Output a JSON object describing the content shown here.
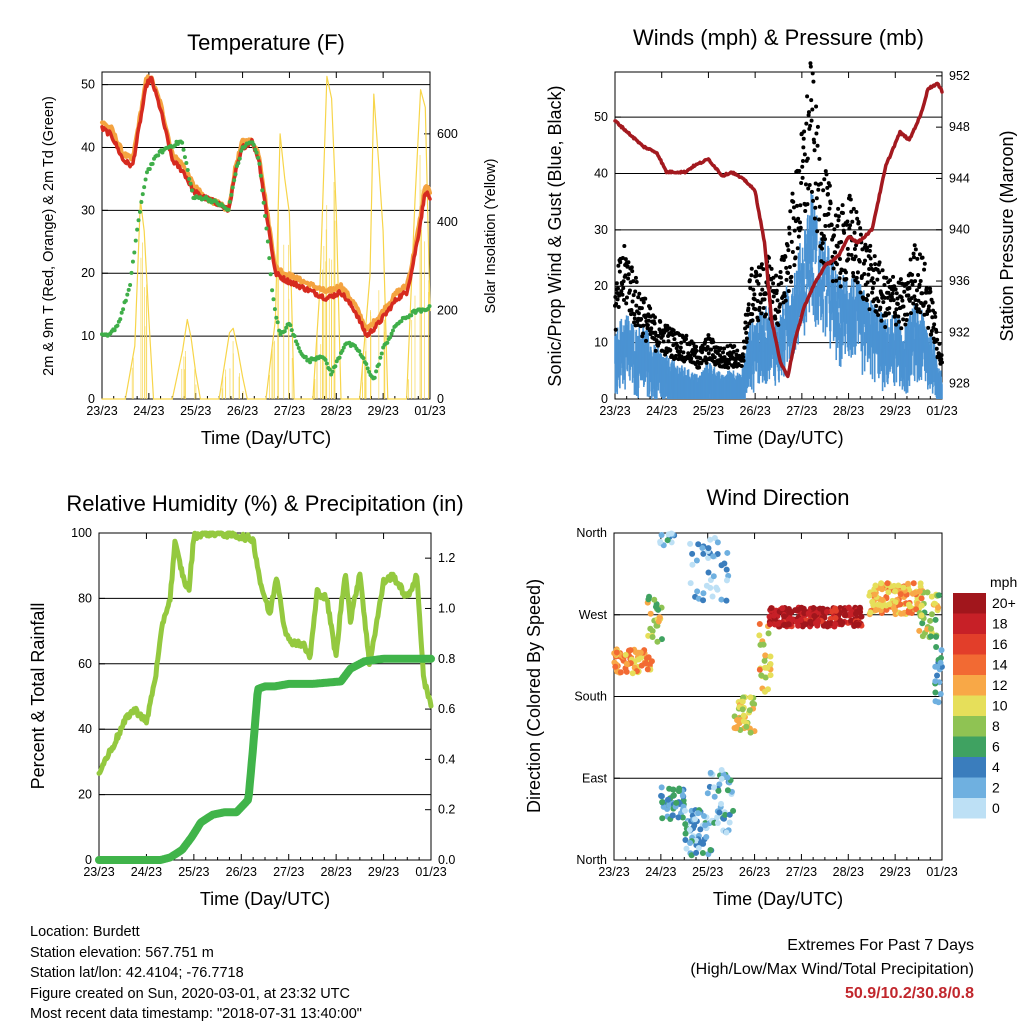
{
  "chart_data": [
    {
      "id": "temperature",
      "type": "line",
      "title": "Temperature (F)",
      "xlabel": "Time (Day/UTC)",
      "ylabel": "2m & 9m T (Red, Orange) & 2m Td (Green)",
      "y2label": "Solar Insolation (Yellow)",
      "x_ticks": [
        "23/23",
        "24/23",
        "25/23",
        "26/23",
        "27/23",
        "28/23",
        "29/23",
        "01/23"
      ],
      "xlim": [
        0,
        7
      ],
      "ylim": [
        0,
        52
      ],
      "y_ticks": [
        0,
        10,
        20,
        30,
        40,
        50
      ],
      "y2lim": [
        0,
        740
      ],
      "y2_ticks": [
        0,
        200,
        400,
        600
      ],
      "grid": true,
      "series": [
        {
          "name": "2m T",
          "color": "#d62a1f",
          "x": [
            0,
            0.2,
            0.45,
            0.65,
            0.95,
            1.05,
            1.25,
            1.5,
            1.75,
            1.95,
            2.2,
            2.5,
            2.7,
            2.85,
            3.0,
            3.2,
            3.35,
            3.5,
            3.7,
            3.9,
            4.2,
            4.5,
            4.8,
            5.1,
            5.4,
            5.65,
            5.9,
            6.1,
            6.3,
            6.5,
            6.6,
            6.75,
            6.9,
            7.0
          ],
          "values": [
            43,
            42,
            38,
            37,
            50,
            51,
            46,
            38,
            36,
            33,
            32,
            31,
            30,
            36,
            40,
            41,
            38,
            30,
            20,
            19,
            18,
            17,
            16,
            17,
            14,
            10,
            12,
            14,
            16,
            17,
            20,
            26,
            33,
            32
          ]
        },
        {
          "name": "9m T",
          "color": "#f4a340",
          "x": [
            0,
            0.2,
            0.45,
            0.65,
            0.95,
            1.05,
            1.25,
            1.5,
            1.75,
            1.95,
            2.2,
            2.5,
            2.7,
            2.85,
            3.0,
            3.2,
            3.35,
            3.5,
            3.7,
            3.9,
            4.2,
            4.5,
            4.8,
            5.1,
            5.4,
            5.65,
            5.9,
            6.1,
            6.3,
            6.5,
            6.6,
            6.75,
            6.9,
            7.0
          ],
          "values": [
            44,
            43,
            39,
            38,
            51,
            51,
            47,
            39,
            37,
            34,
            32,
            31,
            30,
            37,
            41,
            41,
            39,
            31,
            21,
            20,
            19,
            18,
            17,
            18,
            15,
            11,
            13,
            15,
            17,
            18,
            21,
            27,
            34,
            33
          ]
        },
        {
          "name": "2m Td",
          "color": "#3fae49",
          "x": [
            0,
            0.15,
            0.35,
            0.6,
            0.75,
            0.95,
            1.2,
            1.4,
            1.7,
            1.95,
            2.2,
            2.5,
            2.7,
            2.85,
            3.0,
            3.2,
            3.35,
            3.5,
            3.65,
            3.8,
            4.0,
            4.2,
            4.4,
            4.7,
            4.9,
            5.2,
            5.45,
            5.6,
            5.8,
            6.0,
            6.3,
            6.5,
            6.7,
            6.9,
            7.0
          ],
          "values": [
            10,
            10,
            12,
            18,
            27,
            36,
            39,
            40,
            41,
            32,
            32,
            31,
            30,
            36,
            40,
            41,
            38,
            28,
            16,
            10,
            12,
            8,
            6,
            7,
            4,
            9,
            8,
            6,
            3,
            8,
            12,
            13,
            14,
            14,
            15
          ]
        },
        {
          "name": "Solar Insolation",
          "color": "#f7d54a",
          "axis": "y2",
          "x": [
            0,
            0.5,
            0.7,
            0.82,
            0.9,
            1.0,
            1.1,
            1.5,
            1.72,
            1.82,
            1.9,
            2.0,
            2.1,
            2.5,
            2.72,
            2.8,
            2.9,
            3.0,
            3.1,
            3.5,
            3.7,
            3.8,
            3.9,
            4.0,
            4.1,
            4.5,
            4.65,
            4.8,
            4.9,
            5.0,
            5.1,
            5.5,
            5.72,
            5.8,
            5.9,
            6.0,
            6.1,
            6.5,
            6.68,
            6.8,
            6.9,
            7.0
          ],
          "values": [
            0,
            0,
            120,
            450,
            380,
            180,
            0,
            0,
            110,
            180,
            140,
            60,
            0,
            0,
            150,
            160,
            110,
            50,
            0,
            0,
            180,
            600,
            500,
            420,
            0,
            0,
            250,
            730,
            680,
            420,
            0,
            0,
            280,
            690,
            540,
            380,
            0,
            0,
            450,
            700,
            660,
            200
          ]
        }
      ]
    },
    {
      "id": "winds",
      "type": "line",
      "title": "Winds (mph) & Pressure (mb)",
      "xlabel": "Time (Day/UTC)",
      "ylabel": "Sonic/Prop Wind & Gust (Blue, Black)",
      "y2label": "Station Pressure (Maroon)",
      "x_ticks": [
        "23/23",
        "24/23",
        "25/23",
        "26/23",
        "27/23",
        "28/23",
        "29/23",
        "01/23"
      ],
      "xlim": [
        0,
        7
      ],
      "ylim": [
        0,
        58
      ],
      "y_ticks": [
        0,
        10,
        20,
        30,
        40,
        50
      ],
      "y2lim": [
        926.8,
        952.3
      ],
      "y2_ticks": [
        928,
        932,
        936,
        940,
        944,
        948,
        952
      ],
      "grid": true,
      "series": [
        {
          "name": "Sonic/Prop Wind",
          "color": "#4b93d3",
          "x": [
            0,
            0.1,
            0.25,
            0.45,
            0.6,
            0.8,
            1.0,
            1.2,
            1.5,
            1.8,
            2.0,
            2.3,
            2.5,
            2.7,
            2.9,
            3.1,
            3.3,
            3.5,
            3.7,
            3.9,
            4.05,
            4.2,
            4.4,
            4.6,
            4.8,
            5.0,
            5.2,
            5.4,
            5.6,
            5.8,
            6.0,
            6.2,
            6.4,
            6.6,
            6.8,
            7.0
          ],
          "values": [
            8,
            10,
            11,
            9,
            10,
            7,
            6,
            5,
            4,
            3,
            5,
            3,
            4,
            3,
            10,
            11,
            12,
            10,
            15,
            18,
            22,
            27,
            21,
            19,
            15,
            17,
            15,
            13,
            12,
            10,
            11,
            9,
            12,
            11,
            8,
            3
          ]
        },
        {
          "name": "Gust",
          "color": "#000000",
          "x": [
            0,
            0.1,
            0.25,
            0.45,
            0.6,
            0.8,
            1.0,
            1.2,
            1.5,
            1.8,
            2.0,
            2.3,
            2.5,
            2.7,
            2.9,
            3.1,
            3.3,
            3.5,
            3.7,
            3.9,
            4.05,
            4.2,
            4.4,
            4.6,
            4.8,
            5.0,
            5.2,
            5.4,
            5.6,
            5.8,
            6.0,
            6.2,
            6.4,
            6.6,
            6.8,
            7.0
          ],
          "values": [
            15,
            20,
            22,
            17,
            15,
            12,
            11,
            10,
            9,
            7,
            9,
            7,
            8,
            6,
            18,
            19,
            20,
            17,
            25,
            33,
            40,
            48,
            34,
            30,
            26,
            29,
            26,
            22,
            20,
            17,
            18,
            16,
            22,
            20,
            14,
            6
          ]
        },
        {
          "name": "Station Pressure",
          "color": "#a3191f",
          "axis": "y2",
          "x": [
            0,
            0.3,
            0.6,
            0.9,
            1.1,
            1.3,
            1.5,
            1.7,
            2.0,
            2.3,
            2.5,
            2.8,
            3.0,
            3.2,
            3.35,
            3.55,
            3.7,
            3.85,
            4.05,
            4.3,
            4.5,
            4.8,
            5.0,
            5.2,
            5.5,
            5.8,
            6.1,
            6.3,
            6.55,
            6.7,
            6.9,
            7.0
          ],
          "values": [
            948.5,
            947.5,
            946.5,
            946,
            944.5,
            944.5,
            944.5,
            945,
            945.5,
            944.2,
            944.5,
            943.8,
            943,
            939,
            933,
            929.5,
            928.6,
            931.3,
            934,
            936,
            937.2,
            938,
            939.5,
            939,
            940,
            945,
            947.6,
            947,
            949,
            951,
            951.4,
            950.8
          ]
        }
      ]
    },
    {
      "id": "humidity",
      "type": "line",
      "title": "Relative Humidity (%) & Precipitation (in)",
      "xlabel": "Time (Day/UTC)",
      "ylabel": "Percent & Total Rainfall",
      "x_ticks": [
        "23/23",
        "24/23",
        "25/23",
        "26/23",
        "27/23",
        "28/23",
        "29/23",
        "01/23"
      ],
      "xlim": [
        0,
        7
      ],
      "ylim": [
        0,
        100
      ],
      "y_ticks": [
        0,
        20,
        40,
        60,
        80,
        100
      ],
      "y2lim": [
        0,
        1.3
      ],
      "y2_ticks": [
        0.0,
        0.2,
        0.4,
        0.6,
        0.8,
        1.0,
        1.2
      ],
      "grid": true,
      "series": [
        {
          "name": "Relative Humidity",
          "color": "#94c93f",
          "x": [
            0,
            0.3,
            0.6,
            0.75,
            0.9,
            1.0,
            1.2,
            1.35,
            1.5,
            1.6,
            1.7,
            1.8,
            1.9,
            2.0,
            2.2,
            2.5,
            3.0,
            3.25,
            3.4,
            3.6,
            3.75,
            3.9,
            4.0,
            4.3,
            4.45,
            4.6,
            4.8,
            5.0,
            5.1,
            5.2,
            5.3,
            5.5,
            5.7,
            5.8,
            6.0,
            6.2,
            6.5,
            6.7,
            6.85,
            7.0
          ],
          "values": [
            27,
            35,
            44,
            46,
            44,
            42,
            57,
            73,
            80,
            97,
            91,
            85,
            83,
            99,
            100,
            100,
            99,
            98,
            85,
            75,
            87,
            72,
            67,
            66,
            62,
            82,
            80,
            62,
            77,
            88,
            73,
            88,
            60,
            68,
            85,
            87,
            80,
            87,
            55,
            47
          ]
        },
        {
          "name": "Total Rainfall",
          "color": "#40b44a",
          "axis": "y2",
          "x": [
            0,
            1.3,
            1.5,
            1.75,
            1.95,
            2.15,
            2.4,
            2.65,
            2.9,
            3.15,
            3.25,
            3.35,
            3.5,
            3.7,
            4.0,
            4.5,
            5.1,
            5.3,
            5.6,
            6.0,
            6.5,
            7.0
          ],
          "values": [
            0,
            0,
            0.01,
            0.04,
            0.09,
            0.15,
            0.18,
            0.19,
            0.19,
            0.24,
            0.45,
            0.68,
            0.69,
            0.69,
            0.7,
            0.7,
            0.71,
            0.76,
            0.79,
            0.8,
            0.8,
            0.8
          ]
        }
      ]
    },
    {
      "id": "wind_direction",
      "type": "scatter",
      "title": "Wind Direction",
      "xlabel": "Time (Day/UTC)",
      "ylabel": "Direction (Colored By Speed)",
      "x_ticks": [
        "23/23",
        "24/23",
        "25/23",
        "26/23",
        "27/23",
        "28/23",
        "29/23",
        "01/23"
      ],
      "xlim": [
        0,
        7
      ],
      "ylim": [
        0,
        360
      ],
      "y_tick_labels": [
        "North",
        "East",
        "South",
        "West",
        "North"
      ],
      "y_tick_values": [
        0,
        90,
        180,
        270,
        360
      ],
      "grid": true,
      "colorbar": {
        "title": "mph",
        "labels": [
          "20+",
          "18",
          "16",
          "14",
          "12",
          "10",
          "8",
          "6",
          "4",
          "2",
          "0"
        ],
        "colors": [
          "#a1161c",
          "#c72027",
          "#e23e2a",
          "#f26a33",
          "#f8a847",
          "#e6df5a",
          "#8fc353",
          "#3fa261",
          "#3a7dbd",
          "#6fb0e0",
          "#bde0f5"
        ]
      },
      "clusters": [
        {
          "x0": 0.0,
          "x1": 0.85,
          "dir0": 205,
          "dir1": 232,
          "speed": 12,
          "n": 70
        },
        {
          "x0": 0.7,
          "x1": 1.05,
          "dir0": 240,
          "dir1": 290,
          "speed": 9,
          "n": 25
        },
        {
          "x0": 0.9,
          "x1": 1.3,
          "dir0": 345,
          "dir1": 360,
          "speed": 3,
          "n": 12
        },
        {
          "x0": 1.0,
          "x1": 1.5,
          "dir0": 45,
          "dir1": 80,
          "speed": 4,
          "n": 45
        },
        {
          "x0": 1.5,
          "x1": 2.1,
          "dir0": 5,
          "dir1": 55,
          "speed": 3,
          "n": 60
        },
        {
          "x0": 1.6,
          "x1": 2.5,
          "dir0": 285,
          "dir1": 355,
          "speed": 2,
          "n": 40
        },
        {
          "x0": 2.0,
          "x1": 2.55,
          "dir0": 30,
          "dir1": 100,
          "speed": 3,
          "n": 45
        },
        {
          "x0": 2.55,
          "x1": 3.0,
          "dir0": 140,
          "dir1": 180,
          "speed": 10,
          "n": 40
        },
        {
          "x0": 3.1,
          "x1": 3.35,
          "dir0": 185,
          "dir1": 260,
          "speed": 11,
          "n": 25
        },
        {
          "x0": 3.3,
          "x1": 5.3,
          "dir0": 257,
          "dir1": 278,
          "speed": 19,
          "n": 230
        },
        {
          "x0": 5.45,
          "x1": 6.6,
          "dir0": 270,
          "dir1": 305,
          "speed": 12,
          "n": 120
        },
        {
          "x0": 6.5,
          "x1": 6.95,
          "dir0": 245,
          "dir1": 300,
          "speed": 9,
          "n": 35
        },
        {
          "x0": 6.85,
          "x1": 7.0,
          "dir0": 150,
          "dir1": 240,
          "speed": 4,
          "n": 20
        }
      ]
    }
  ],
  "footer": {
    "location": "Location: Burdett",
    "elevation": "Station elevation: 567.751 m",
    "latlon": "Station lat/lon: 42.4104; -76.7718",
    "created": "Figure created on Sun, 2020-03-01, at 23:32 UTC",
    "recent": "Most recent data timestamp: \"2018-07-31 13:40:00\"",
    "extremes_title": "Extremes For Past 7 Days",
    "extremes_legend": "(High/Low/Max Wind/Total Precipitation)",
    "extremes_values": "50.9/10.2/30.8/0.8"
  }
}
